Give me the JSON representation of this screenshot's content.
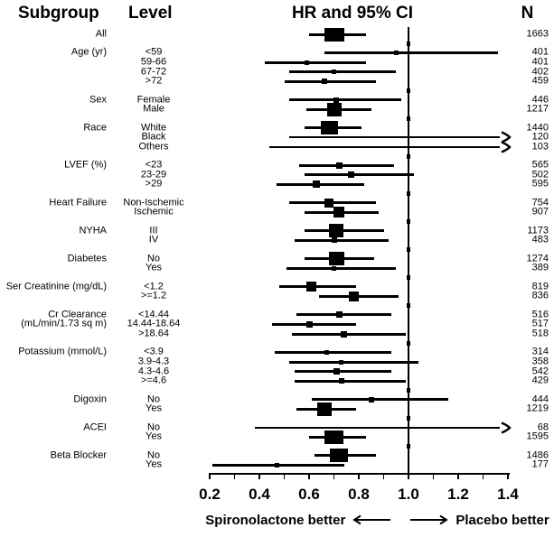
{
  "header": {
    "subgroup": "Subgroup",
    "level": "Level",
    "hr_ci": "HR and 95% CI",
    "n": "N"
  },
  "footer": {
    "left_label": "Spironolactone better",
    "right_label": "Placebo better"
  },
  "chart_data": {
    "type": "forest",
    "title": "HR and 95% CI",
    "x_axis": {
      "range": [
        0.2,
        1.4
      ],
      "minor_step": 0.1,
      "labeled_ticks": [
        0.2,
        0.4,
        0.6,
        0.8,
        1.0,
        1.2,
        1.4
      ],
      "reference_line": 1.0
    },
    "direction_labels": {
      "left": "Spironolactone better",
      "right": "Placebo better"
    },
    "groups": [
      {
        "subgroup": "All",
        "rows": [
          {
            "level": "",
            "n": 1663,
            "hr": 0.7,
            "lo": 0.6,
            "hi": 0.83
          }
        ]
      },
      {
        "subgroup": "Age (yr)",
        "rows": [
          {
            "level": "<59",
            "n": 401,
            "hr": 0.95,
            "lo": 0.66,
            "hi": 1.36
          },
          {
            "level": "59-66",
            "n": 401,
            "hr": 0.59,
            "lo": 0.42,
            "hi": 0.83
          },
          {
            "level": "67-72",
            "n": 402,
            "hr": 0.7,
            "lo": 0.52,
            "hi": 0.95
          },
          {
            "level": ">72",
            "n": 459,
            "hr": 0.66,
            "lo": 0.5,
            "hi": 0.87
          }
        ]
      },
      {
        "subgroup": "Sex",
        "rows": [
          {
            "level": "Female",
            "n": 446,
            "hr": 0.71,
            "lo": 0.52,
            "hi": 0.97
          },
          {
            "level": "Male",
            "n": 1217,
            "hr": 0.7,
            "lo": 0.59,
            "hi": 0.85
          }
        ]
      },
      {
        "subgroup": "Race",
        "rows": [
          {
            "level": "White",
            "n": 1440,
            "hr": 0.68,
            "lo": 0.58,
            "hi": 0.81
          },
          {
            "level": "Black",
            "n": 120,
            "hr": null,
            "lo": 0.52,
            "hi": null,
            "arrow_right": true
          },
          {
            "level": "Others",
            "n": 103,
            "hr": null,
            "lo": 0.44,
            "hi": null,
            "arrow_right": true
          }
        ]
      },
      {
        "subgroup": "LVEF (%)",
        "rows": [
          {
            "level": "<23",
            "n": 565,
            "hr": 0.72,
            "lo": 0.56,
            "hi": 0.94
          },
          {
            "level": "23-29",
            "n": 502,
            "hr": 0.77,
            "lo": 0.58,
            "hi": 1.02
          },
          {
            "level": ">29",
            "n": 595,
            "hr": 0.63,
            "lo": 0.47,
            "hi": 0.82
          }
        ]
      },
      {
        "subgroup": "Heart Failure",
        "rows": [
          {
            "level": "Non-Ischemic",
            "n": 754,
            "hr": 0.68,
            "lo": 0.52,
            "hi": 0.87
          },
          {
            "level": "Ischemic",
            "n": 907,
            "hr": 0.72,
            "lo": 0.58,
            "hi": 0.88
          }
        ]
      },
      {
        "subgroup": "NYHA",
        "rows": [
          {
            "level": "III",
            "n": 1173,
            "hr": 0.71,
            "lo": 0.58,
            "hi": 0.9
          },
          {
            "level": "IV",
            "n": 483,
            "hr": 0.7,
            "lo": 0.54,
            "hi": 0.92
          }
        ]
      },
      {
        "subgroup": "Diabetes",
        "rows": [
          {
            "level": "No",
            "n": 1274,
            "hr": 0.71,
            "lo": 0.58,
            "hi": 0.86
          },
          {
            "level": "Yes",
            "n": 389,
            "hr": 0.7,
            "lo": 0.51,
            "hi": 0.95
          }
        ]
      },
      {
        "subgroup": "Ser Creatinine (mg/dL)",
        "rows": [
          {
            "level": "<1.2",
            "n": 819,
            "hr": 0.61,
            "lo": 0.48,
            "hi": 0.79
          },
          {
            "level": ">=1.2",
            "n": 836,
            "hr": 0.78,
            "lo": 0.64,
            "hi": 0.96
          }
        ]
      },
      {
        "subgroup": "Cr Clearance",
        "subgroup_line2": "(mL/min/1.73 sq m)",
        "rows": [
          {
            "level": "<14.44",
            "n": 516,
            "hr": 0.72,
            "lo": 0.55,
            "hi": 0.93
          },
          {
            "level": "14.44-18.64",
            "n": 517,
            "hr": 0.6,
            "lo": 0.45,
            "hi": 0.79
          },
          {
            "level": ">18.64",
            "n": 518,
            "hr": 0.74,
            "lo": 0.53,
            "hi": 0.99
          }
        ]
      },
      {
        "subgroup": "Potassium (mmol/L)",
        "rows": [
          {
            "level": "<3.9",
            "n": 314,
            "hr": 0.67,
            "lo": 0.46,
            "hi": 0.93
          },
          {
            "level": "3.9-4.3",
            "n": 358,
            "hr": 0.73,
            "lo": 0.52,
            "hi": 1.04
          },
          {
            "level": "4.3-4.6",
            "n": 542,
            "hr": 0.71,
            "lo": 0.54,
            "hi": 0.93
          },
          {
            "level": ">=4.6",
            "n": 429,
            "hr": 0.73,
            "lo": 0.54,
            "hi": 0.99
          }
        ]
      },
      {
        "subgroup": "Digoxin",
        "rows": [
          {
            "level": "No",
            "n": 444,
            "hr": 0.85,
            "lo": 0.61,
            "hi": 1.16
          },
          {
            "level": "Yes",
            "n": 1219,
            "hr": 0.66,
            "lo": 0.55,
            "hi": 0.79
          }
        ]
      },
      {
        "subgroup": "ACEI",
        "rows": [
          {
            "level": "No",
            "n": 68,
            "hr": null,
            "lo": 0.38,
            "hi": null,
            "arrow_right": true
          },
          {
            "level": "Yes",
            "n": 1595,
            "hr": 0.7,
            "lo": 0.6,
            "hi": 0.83
          }
        ]
      },
      {
        "subgroup": "Beta Blocker",
        "rows": [
          {
            "level": "No",
            "n": 1486,
            "hr": 0.72,
            "lo": 0.62,
            "hi": 0.87
          },
          {
            "level": "Yes",
            "n": 177,
            "hr": 0.47,
            "lo": 0.21,
            "hi": 0.74
          }
        ]
      }
    ]
  }
}
